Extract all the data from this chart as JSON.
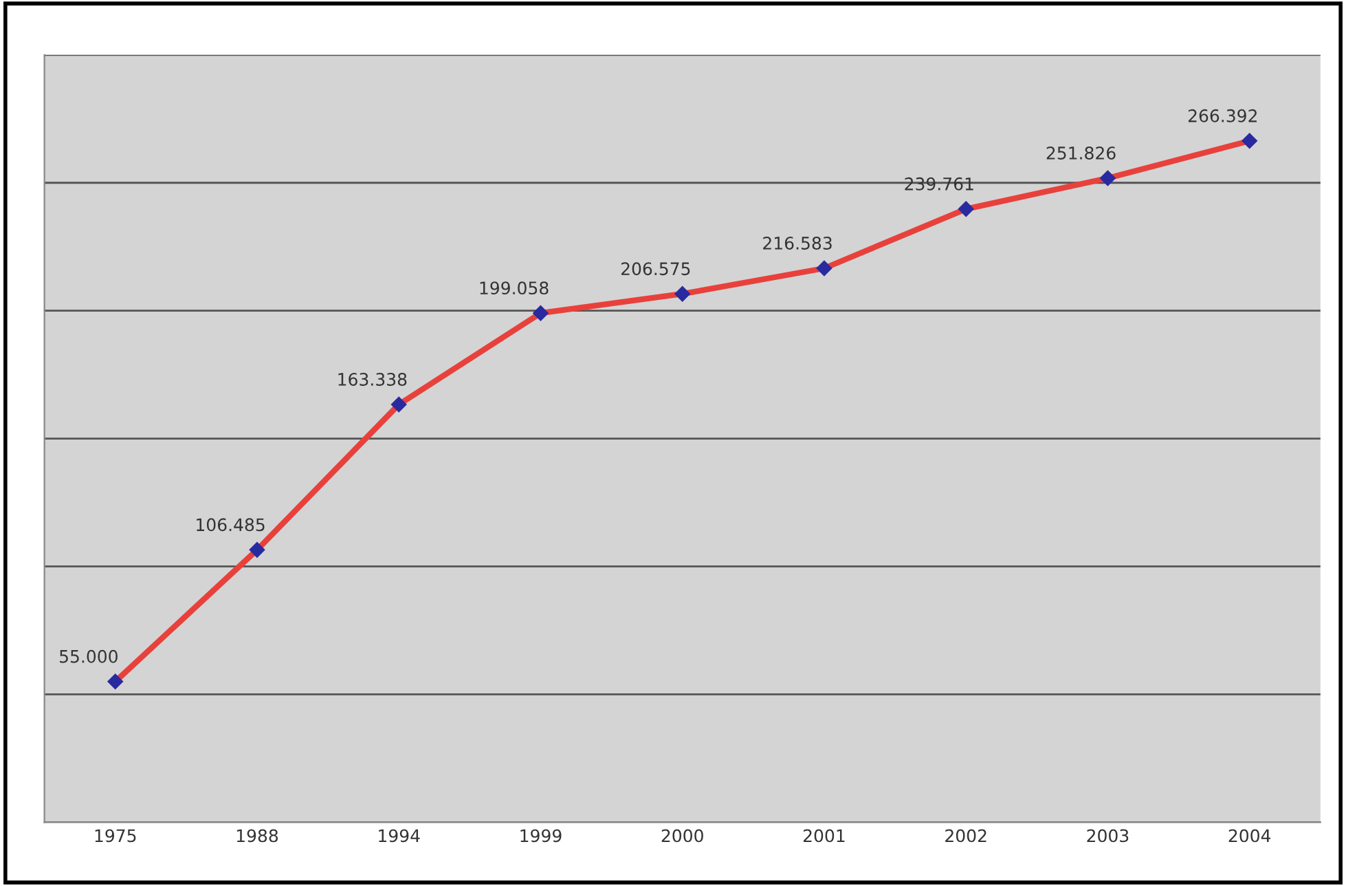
{
  "chart_data": {
    "type": "line",
    "categories": [
      "1975",
      "1988",
      "1994",
      "1999",
      "2000",
      "2001",
      "2002",
      "2003",
      "2004"
    ],
    "series": [
      {
        "color": "#e8413c",
        "values": [
          55000,
          106485,
          163338,
          199058,
          206575,
          216583,
          239761,
          251826,
          266392
        ],
        "value_labels": [
          "55.000",
          "106.485",
          "163.338",
          "199.058",
          "206.575",
          "216.583",
          "239.761",
          "251.826",
          "266.392"
        ]
      }
    ],
    "marker": "diamond",
    "line_style": "solid",
    "ylim": [
      0,
      300000
    ],
    "yticks": [
      {
        "value": 0,
        "label": null
      },
      {
        "value": 50000,
        "label": null
      },
      {
        "value": 100000,
        "label": null
      },
      {
        "value": 150000,
        "label": null
      },
      {
        "value": 200000,
        "label": null
      },
      {
        "value": 250000,
        "label": null
      },
      {
        "value": 300000,
        "label": null
      }
    ],
    "grid": "y",
    "tick_labels": "x"
  }
}
